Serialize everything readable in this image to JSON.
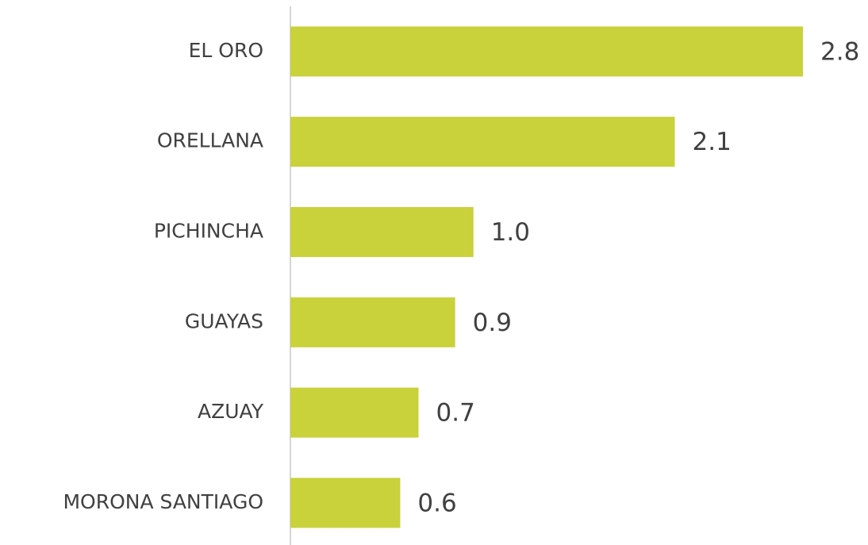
{
  "chart_data": {
    "type": "bar",
    "orientation": "horizontal",
    "categories": [
      "EL ORO",
      "ORELLANA",
      "PICHINCHA",
      "GUAYAS",
      "AZUAY",
      "MORONA SANTIAGO"
    ],
    "values": [
      2.8,
      2.1,
      1.0,
      0.9,
      0.7,
      0.6
    ],
    "value_labels": [
      "2.8",
      "2.1",
      "1.0",
      "0.9",
      "0.7",
      "0.6"
    ],
    "color": "#c9d13b"
  }
}
